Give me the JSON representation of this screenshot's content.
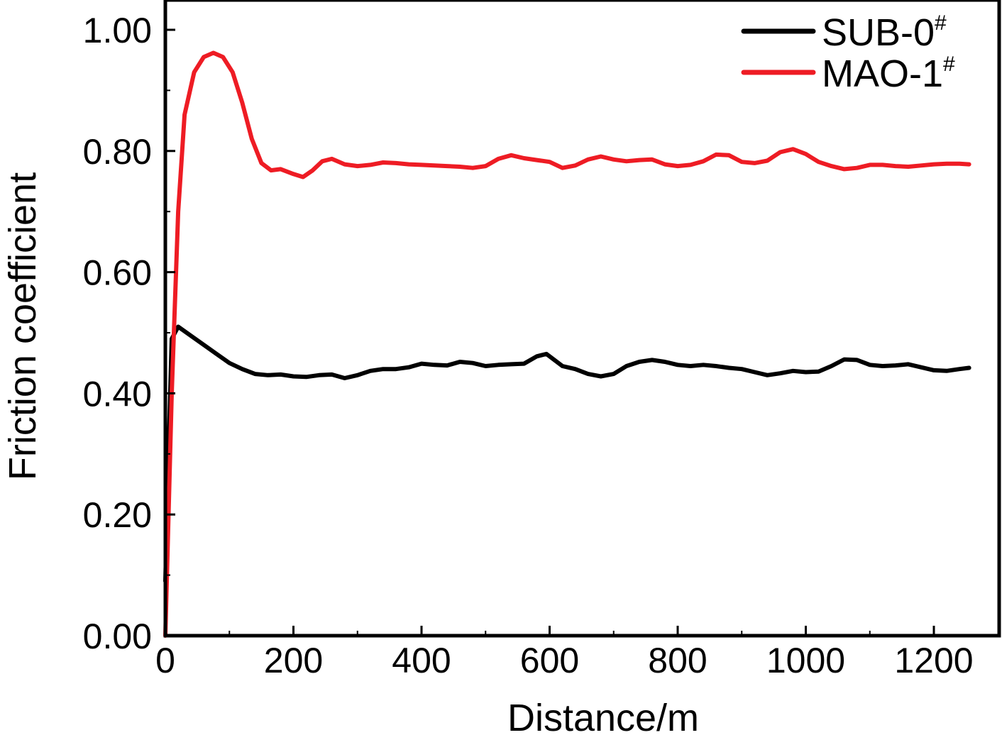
{
  "chart_data": {
    "type": "line",
    "title": "",
    "xlabel": "Distance/m",
    "ylabel": "Friction coefficient",
    "xlim": [
      0,
      1310
    ],
    "ylim": [
      0,
      1.05
    ],
    "x_ticks": [
      0,
      200,
      400,
      600,
      800,
      1000,
      1200
    ],
    "x_tick_labels": [
      "0",
      "200",
      "400",
      "600",
      "800",
      "1000",
      "1200"
    ],
    "y_ticks": [
      0,
      0.2,
      0.4,
      0.6,
      0.8,
      1.0
    ],
    "y_tick_labels": [
      "0.00",
      "0.20",
      "0.40",
      "0.60",
      "0.80",
      "1.00"
    ],
    "grid": false,
    "legend_position": "top-right",
    "series": [
      {
        "name": "SUB-0",
        "name_sup": "#",
        "color": "#000000",
        "points": [
          [
            0,
            0.09
          ],
          [
            5,
            0.3
          ],
          [
            10,
            0.49
          ],
          [
            20,
            0.51
          ],
          [
            40,
            0.495
          ],
          [
            60,
            0.48
          ],
          [
            80,
            0.465
          ],
          [
            100,
            0.45
          ],
          [
            120,
            0.44
          ],
          [
            140,
            0.432
          ],
          [
            160,
            0.43
          ],
          [
            180,
            0.431
          ],
          [
            200,
            0.428
          ],
          [
            220,
            0.427
          ],
          [
            240,
            0.43
          ],
          [
            260,
            0.431
          ],
          [
            280,
            0.425
          ],
          [
            300,
            0.43
          ],
          [
            320,
            0.437
          ],
          [
            340,
            0.44
          ],
          [
            360,
            0.44
          ],
          [
            380,
            0.443
          ],
          [
            400,
            0.449
          ],
          [
            420,
            0.447
          ],
          [
            440,
            0.446
          ],
          [
            460,
            0.452
          ],
          [
            480,
            0.45
          ],
          [
            500,
            0.445
          ],
          [
            520,
            0.447
          ],
          [
            540,
            0.448
          ],
          [
            560,
            0.449
          ],
          [
            580,
            0.461
          ],
          [
            595,
            0.465
          ],
          [
            620,
            0.445
          ],
          [
            640,
            0.44
          ],
          [
            660,
            0.432
          ],
          [
            680,
            0.428
          ],
          [
            700,
            0.432
          ],
          [
            720,
            0.445
          ],
          [
            740,
            0.452
          ],
          [
            760,
            0.455
          ],
          [
            780,
            0.452
          ],
          [
            800,
            0.447
          ],
          [
            820,
            0.445
          ],
          [
            840,
            0.447
          ],
          [
            860,
            0.445
          ],
          [
            880,
            0.442
          ],
          [
            900,
            0.44
          ],
          [
            920,
            0.435
          ],
          [
            940,
            0.43
          ],
          [
            960,
            0.433
          ],
          [
            980,
            0.437
          ],
          [
            1000,
            0.435
          ],
          [
            1020,
            0.436
          ],
          [
            1040,
            0.445
          ],
          [
            1060,
            0.456
          ],
          [
            1080,
            0.455
          ],
          [
            1100,
            0.447
          ],
          [
            1120,
            0.445
          ],
          [
            1140,
            0.446
          ],
          [
            1160,
            0.448
          ],
          [
            1180,
            0.443
          ],
          [
            1200,
            0.438
          ],
          [
            1220,
            0.437
          ],
          [
            1240,
            0.44
          ],
          [
            1255,
            0.442
          ]
        ]
      },
      {
        "name": "MAO-1",
        "name_sup": "#",
        "color": "#ee1c24",
        "points": [
          [
            0,
            0.0
          ],
          [
            10,
            0.4
          ],
          [
            20,
            0.7
          ],
          [
            30,
            0.86
          ],
          [
            45,
            0.93
          ],
          [
            60,
            0.955
          ],
          [
            75,
            0.962
          ],
          [
            90,
            0.955
          ],
          [
            105,
            0.93
          ],
          [
            120,
            0.88
          ],
          [
            135,
            0.82
          ],
          [
            150,
            0.78
          ],
          [
            165,
            0.768
          ],
          [
            180,
            0.77
          ],
          [
            200,
            0.762
          ],
          [
            215,
            0.757
          ],
          [
            230,
            0.768
          ],
          [
            245,
            0.783
          ],
          [
            260,
            0.787
          ],
          [
            280,
            0.778
          ],
          [
            300,
            0.775
          ],
          [
            320,
            0.777
          ],
          [
            340,
            0.781
          ],
          [
            360,
            0.78
          ],
          [
            380,
            0.778
          ],
          [
            400,
            0.777
          ],
          [
            420,
            0.776
          ],
          [
            440,
            0.775
          ],
          [
            460,
            0.774
          ],
          [
            480,
            0.772
          ],
          [
            500,
            0.775
          ],
          [
            520,
            0.787
          ],
          [
            540,
            0.793
          ],
          [
            560,
            0.788
          ],
          [
            580,
            0.785
          ],
          [
            600,
            0.782
          ],
          [
            620,
            0.772
          ],
          [
            640,
            0.776
          ],
          [
            660,
            0.786
          ],
          [
            680,
            0.791
          ],
          [
            700,
            0.786
          ],
          [
            720,
            0.783
          ],
          [
            740,
            0.785
          ],
          [
            760,
            0.786
          ],
          [
            780,
            0.778
          ],
          [
            800,
            0.775
          ],
          [
            820,
            0.777
          ],
          [
            840,
            0.783
          ],
          [
            860,
            0.794
          ],
          [
            880,
            0.793
          ],
          [
            900,
            0.782
          ],
          [
            920,
            0.78
          ],
          [
            940,
            0.784
          ],
          [
            960,
            0.798
          ],
          [
            980,
            0.803
          ],
          [
            1000,
            0.795
          ],
          [
            1020,
            0.782
          ],
          [
            1040,
            0.775
          ],
          [
            1060,
            0.77
          ],
          [
            1080,
            0.772
          ],
          [
            1100,
            0.777
          ],
          [
            1120,
            0.777
          ],
          [
            1140,
            0.775
          ],
          [
            1160,
            0.774
          ],
          [
            1180,
            0.776
          ],
          [
            1200,
            0.778
          ],
          [
            1220,
            0.779
          ],
          [
            1240,
            0.779
          ],
          [
            1255,
            0.778
          ]
        ]
      }
    ]
  }
}
